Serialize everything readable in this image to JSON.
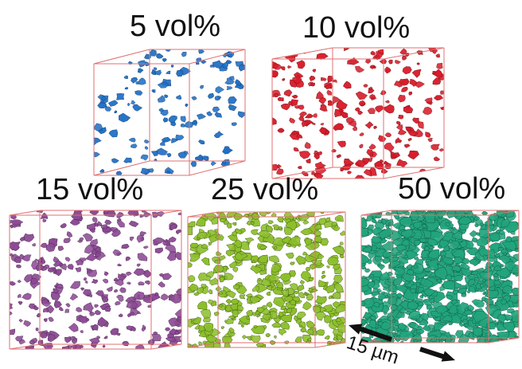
{
  "panels": [
    {
      "label": "5 vol%",
      "color": "#1f6fc4",
      "dark": "#0f3f7a",
      "fraction": 0.05
    },
    {
      "label": "10 vol%",
      "color": "#d81c2a",
      "dark": "#7a0b12",
      "fraction": 0.1
    },
    {
      "label": "15 vol%",
      "color": "#8c4b94",
      "dark": "#4d2252",
      "fraction": 0.15
    },
    {
      "label": "25 vol%",
      "color": "#8cbf2a",
      "dark": "#3f5a10",
      "fraction": 0.25
    },
    {
      "label": "50 vol%",
      "color": "#22a47c",
      "dark": "#0d5a42",
      "fraction": 0.5
    }
  ],
  "scale_bar": {
    "label": "15 µm"
  },
  "edge_color": "#e07070"
}
